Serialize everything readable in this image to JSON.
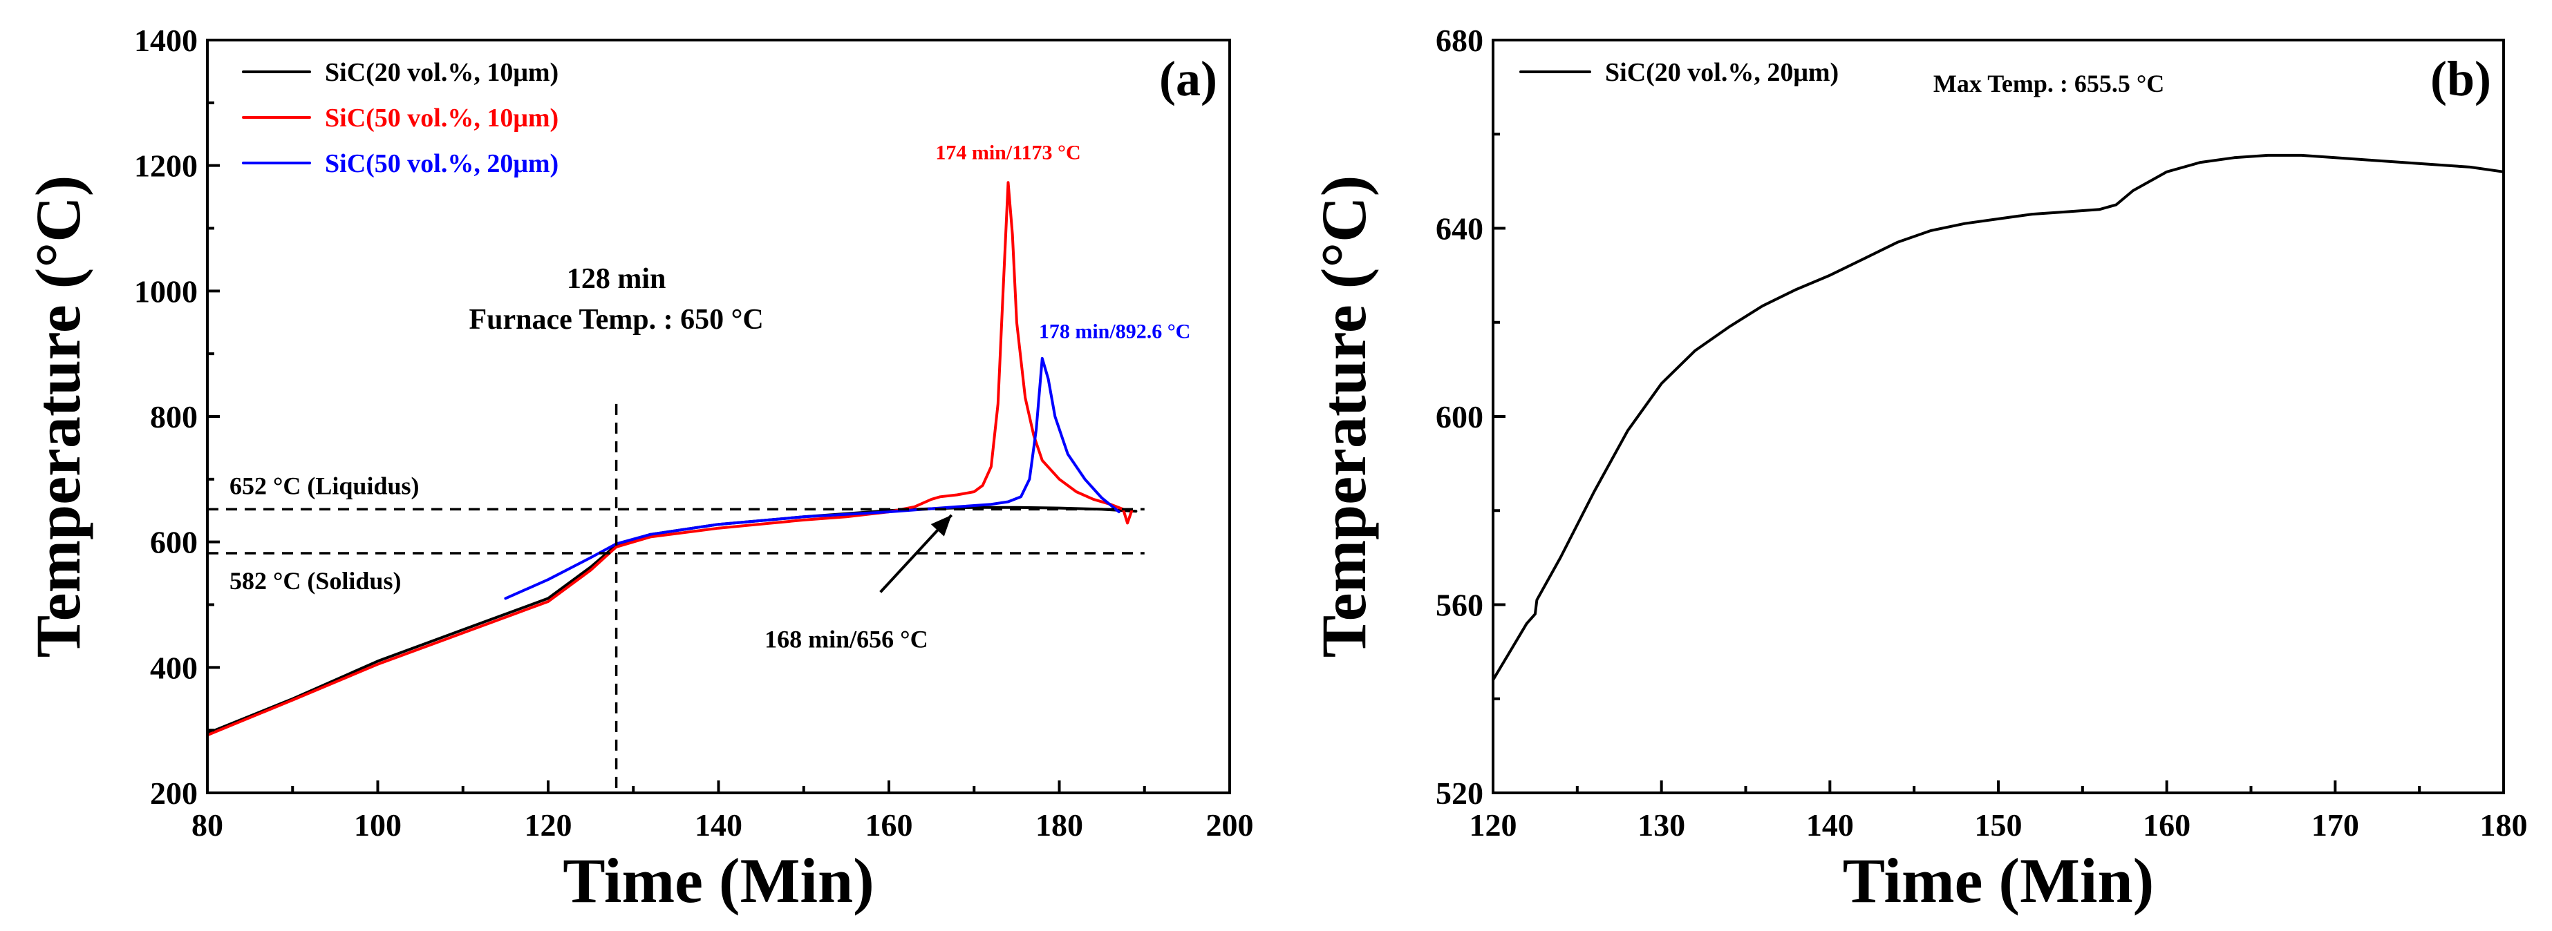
{
  "chart_data": [
    {
      "type": "line",
      "panel_label": "(a)",
      "xlabel": "Time (Min)",
      "ylabel": "Temperature (°C)",
      "xlim": [
        80,
        200
      ],
      "ylim": [
        200,
        1400
      ],
      "xticks": [
        80,
        100,
        120,
        140,
        160,
        180,
        200
      ],
      "yticks": [
        200,
        400,
        600,
        800,
        1000,
        1200,
        1400
      ],
      "xtick_labels": [
        "80",
        "100",
        "120",
        "140",
        "160",
        "180",
        "200"
      ],
      "ytick_labels": [
        "200",
        "400",
        "600",
        "800",
        "1000",
        "1200",
        "1400"
      ],
      "legend_position": "top-left",
      "series": [
        {
          "name": "SiC(20 vol.%, 10μm)",
          "color": "#000000",
          "points": [
            [
              80,
              295
            ],
            [
              90,
              350
            ],
            [
              100,
              410
            ],
            [
              110,
              460
            ],
            [
              120,
              510
            ],
            [
              125,
              560
            ],
            [
              128,
              595
            ],
            [
              132,
              612
            ],
            [
              140,
              628
            ],
            [
              150,
              640
            ],
            [
              155,
              645
            ],
            [
              160,
              650
            ],
            [
              165,
              653
            ],
            [
              170,
              655
            ],
            [
              175,
              655
            ],
            [
              180,
              654
            ],
            [
              185,
              652
            ],
            [
              189,
              649
            ]
          ]
        },
        {
          "name": "SiC(50 vol.%, 10μm)",
          "color": "#ff0000",
          "points": [
            [
              80,
              292
            ],
            [
              90,
              348
            ],
            [
              100,
              405
            ],
            [
              110,
              455
            ],
            [
              120,
              505
            ],
            [
              125,
              555
            ],
            [
              128,
              592
            ],
            [
              132,
              608
            ],
            [
              140,
              622
            ],
            [
              150,
              635
            ],
            [
              155,
              640
            ],
            [
              160,
              648
            ],
            [
              163,
              656
            ],
            [
              165,
              668
            ],
            [
              166,
              672
            ],
            [
              168,
              675
            ],
            [
              170,
              680
            ],
            [
              171,
              690
            ],
            [
              172,
              720
            ],
            [
              172.8,
              820
            ],
            [
              173.4,
              1000
            ],
            [
              174,
              1173
            ],
            [
              174.5,
              1090
            ],
            [
              175,
              950
            ],
            [
              176,
              830
            ],
            [
              177,
              770
            ],
            [
              178,
              730
            ],
            [
              180,
              700
            ],
            [
              182,
              680
            ],
            [
              184,
              668
            ],
            [
              186,
              660
            ],
            [
              187.5,
              652
            ],
            [
              188,
              630
            ],
            [
              188.5,
              650
            ]
          ]
        },
        {
          "name": "SiC(50 vol.%, 20μm)",
          "color": "#0000ff",
          "points": [
            [
              115,
              510
            ],
            [
              120,
              540
            ],
            [
              125,
              575
            ],
            [
              128,
              597
            ],
            [
              132,
              612
            ],
            [
              140,
              628
            ],
            [
              150,
              640
            ],
            [
              160,
              648
            ],
            [
              165,
              653
            ],
            [
              168,
              656
            ],
            [
              170,
              658
            ],
            [
              172,
              660
            ],
            [
              174,
              664
            ],
            [
              175.5,
              672
            ],
            [
              176.5,
              700
            ],
            [
              177.3,
              780
            ],
            [
              178,
              892.6
            ],
            [
              178.7,
              860
            ],
            [
              179.5,
              800
            ],
            [
              181,
              740
            ],
            [
              183,
              700
            ],
            [
              185,
              670
            ],
            [
              187,
              648
            ]
          ]
        }
      ],
      "reference_lines": [
        {
          "orientation": "horizontal",
          "value": 652,
          "label": "652 °C (Liquidus)"
        },
        {
          "orientation": "horizontal",
          "value": 582,
          "label": "582 °C (Solidus)"
        },
        {
          "orientation": "vertical",
          "value": 128,
          "label_line1": "128 min",
          "label_line2": "Furnace Temp. : 650 °C"
        }
      ],
      "annotations": [
        {
          "text": "174 min/1173 °C",
          "color": "#ff0000"
        },
        {
          "text": "178 min/892.6 °C",
          "color": "#0000ff"
        },
        {
          "text": "168 min/656 °C",
          "color": "#000000",
          "arrow_to": [
            168,
            656
          ],
          "arrow_from": [
            159,
            520
          ]
        }
      ]
    },
    {
      "type": "line",
      "panel_label": "(b)",
      "xlabel": "Time (Min)",
      "ylabel": "Temperature (°C)",
      "xlim": [
        120,
        180
      ],
      "ylim": [
        520,
        680
      ],
      "xticks": [
        120,
        130,
        140,
        150,
        160,
        170,
        180
      ],
      "yticks": [
        520,
        560,
        600,
        640,
        680
      ],
      "xtick_labels": [
        "120",
        "130",
        "140",
        "150",
        "160",
        "170",
        "180"
      ],
      "ytick_labels": [
        "520",
        "560",
        "600",
        "640",
        "680"
      ],
      "legend_position": "top-left",
      "series": [
        {
          "name": "SiC(20 vol.%, 20μm)",
          "color": "#000000",
          "points": [
            [
              120,
              544
            ],
            [
              121,
              550
            ],
            [
              122,
              556
            ],
            [
              122.5,
              558
            ],
            [
              122.6,
              561
            ],
            [
              124,
              570
            ],
            [
              126,
              584
            ],
            [
              128,
              597
            ],
            [
              130,
              607
            ],
            [
              132,
              614
            ],
            [
              134,
              619
            ],
            [
              136,
              623.5
            ],
            [
              138,
              627
            ],
            [
              140,
              630
            ],
            [
              142,
              633.5
            ],
            [
              144,
              637
            ],
            [
              146,
              639.5
            ],
            [
              148,
              641
            ],
            [
              150,
              642
            ],
            [
              152,
              643
            ],
            [
              154,
              643.5
            ],
            [
              156,
              644
            ],
            [
              157,
              645
            ],
            [
              158,
              648
            ],
            [
              160,
              652
            ],
            [
              162,
              654
            ],
            [
              164,
              655
            ],
            [
              166,
              655.5
            ],
            [
              168,
              655.5
            ],
            [
              170,
              655
            ],
            [
              172,
              654.5
            ],
            [
              174,
              654
            ],
            [
              176,
              653.5
            ],
            [
              178,
              653
            ],
            [
              180,
              652
            ]
          ]
        }
      ],
      "annotations": [
        {
          "text": "Max Temp. : 655.5 °C",
          "color": "#000000"
        }
      ]
    }
  ]
}
